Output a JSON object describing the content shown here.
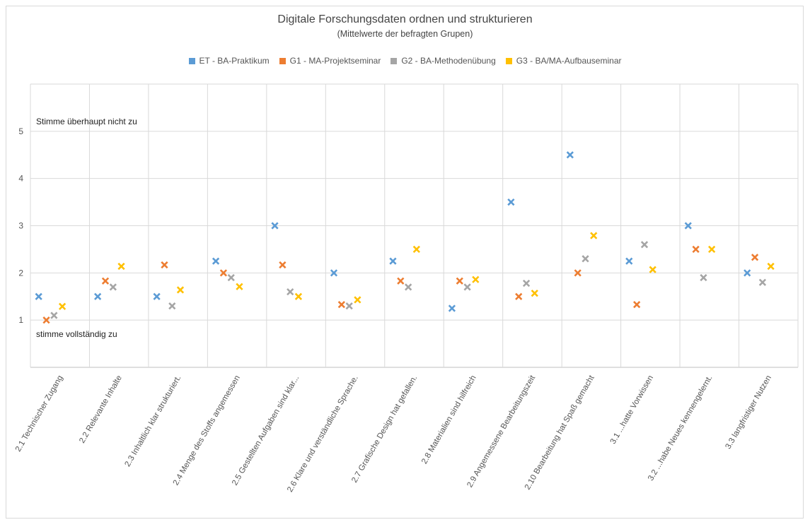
{
  "chart_data": {
    "type": "scatter",
    "title": "Digitale Forschungsdaten ordnen und strukturieren",
    "subtitle": "(Mittelwerte der befragten Grupen)",
    "categories": [
      "2.1 Technischer Zugang",
      "2.2 Relevante Inhalte",
      "2.3 Inhaltlich klar strukturiert.",
      "2.4 Menge des Stoffs angemessen",
      "2.5 Gestellten Aufgaben sind klar...",
      "2.6 Klare und verständliche Sprache.",
      "2.7 Grafische Design hat gefallen.",
      "2.8 Materialien sind hilfreich",
      "2.9 Angemessene Bearbeitungszeit",
      "2.10 Bearbeitung hat Spaß gemacht",
      "3.1 ...hatte Vorwissen",
      "3.2 ...habe Neues kennengelernt.",
      "3.3 langfristiger Nutzen"
    ],
    "series": [
      {
        "name": "ET - BA-Praktikum",
        "color": "#5b9bd5",
        "values": [
          1.5,
          1.5,
          1.5,
          2.25,
          3.0,
          2.0,
          2.25,
          1.25,
          3.5,
          4.5,
          2.25,
          3.0,
          2.0
        ]
      },
      {
        "name": "G1 - MA-Projektseminar",
        "color": "#ed7d31",
        "values": [
          1.0,
          1.83,
          2.17,
          2.0,
          2.17,
          1.33,
          1.83,
          1.83,
          1.5,
          2.0,
          1.33,
          2.5,
          2.33
        ]
      },
      {
        "name": "G2 - BA-Methodenübung",
        "color": "#a5a5a5",
        "values": [
          1.1,
          1.7,
          1.3,
          1.9,
          1.6,
          1.3,
          1.7,
          1.7,
          1.78,
          2.3,
          2.6,
          1.9,
          1.8
        ]
      },
      {
        "name": "G3 - BA/MA-Aufbauseminar",
        "color": "#ffc000",
        "values": [
          1.29,
          2.14,
          1.64,
          1.71,
          1.5,
          1.43,
          2.5,
          1.86,
          1.57,
          2.79,
          2.07,
          2.5,
          2.14
        ]
      }
    ],
    "yticks": [
      1,
      2,
      3,
      4,
      5
    ],
    "ylim": [
      0,
      6
    ],
    "annotations": {
      "top": "Stimme überhaupt nicht zu",
      "bottom": "stimme vollständig zu"
    },
    "marker": "x",
    "grid": true,
    "legend_position": "top"
  }
}
